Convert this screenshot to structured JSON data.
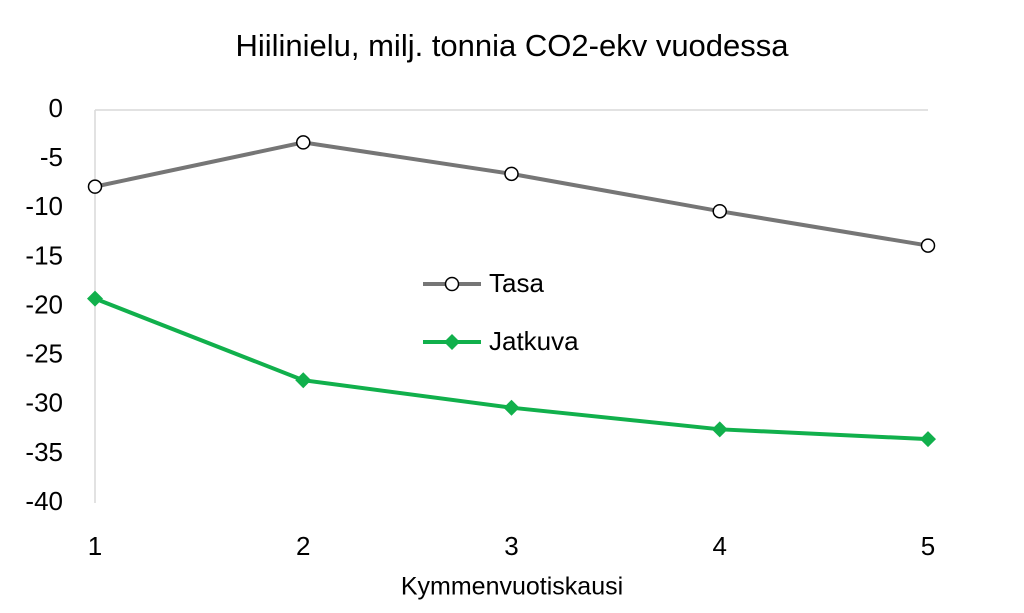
{
  "chart_data": {
    "type": "line",
    "title": "Hiilinielu, milj. tonnia CO2-ekv vuodessa",
    "x_label": "Kymmenvuotiskausi",
    "x": [
      1,
      2,
      3,
      4,
      5
    ],
    "series": [
      {
        "name": "Tasa",
        "color": "#767676",
        "marker": "circle",
        "values": [
          -7.8,
          -3.3,
          -6.5,
          -10.3,
          -13.8
        ]
      },
      {
        "name": "Jatkuva",
        "color": "#11b04c",
        "marker": "diamond",
        "values": [
          -19.2,
          -27.5,
          -30.3,
          -32.5,
          -33.5
        ]
      }
    ],
    "xlim": [
      1,
      5
    ],
    "xticks": [
      1,
      2,
      3,
      4,
      5
    ],
    "ylim": [
      -40,
      0
    ],
    "yticks": [
      0,
      -5,
      -10,
      -15,
      -20,
      -25,
      -30,
      -35,
      -40
    ],
    "grid": false,
    "legend": "center"
  }
}
